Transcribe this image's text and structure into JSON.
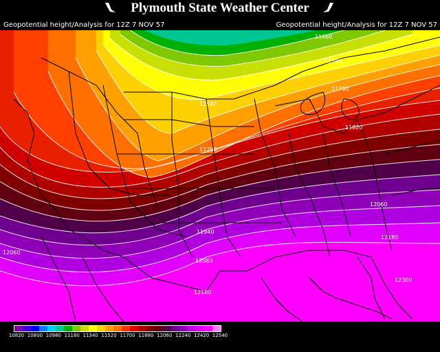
{
  "header": {
    "title": "Plymouth State Weather Center",
    "left_caption": "Geopotential height/Analysis for 12Z 7 NOV 57",
    "right_caption": "Geopotential height/Analysis for 12Z 7 NOV 57"
  },
  "map": {
    "contour_labels": [
      {
        "text": "11460"
      },
      {
        "text": "11580"
      },
      {
        "text": "11700"
      },
      {
        "text": "11820"
      },
      {
        "text": "11580"
      },
      {
        "text": "11700"
      },
      {
        "text": "12060"
      },
      {
        "text": "12180"
      },
      {
        "text": "11940"
      },
      {
        "text": "12060"
      },
      {
        "text": "12060"
      },
      {
        "text": "12300"
      },
      {
        "text": "12180"
      }
    ]
  },
  "legend": {
    "ticks": [
      "10820",
      "10800",
      "10980",
      "11160",
      "11340",
      "11520",
      "11700",
      "11880",
      "12060",
      "12240",
      "12420",
      "12540"
    ],
    "colors": [
      "#8a00b0",
      "#3c00e0",
      "#0000ff",
      "#0080ff",
      "#00d0ff",
      "#00c890",
      "#00b000",
      "#80c800",
      "#c8e000",
      "#ffff00",
      "#ffd000",
      "#ffa000",
      "#ff7000",
      "#ff3000",
      "#e00000",
      "#b00000",
      "#800000",
      "#600010",
      "#500050",
      "#700090",
      "#9000c0",
      "#c000e0",
      "#e000ff",
      "#ff00ff",
      "#ff80ff"
    ]
  }
}
